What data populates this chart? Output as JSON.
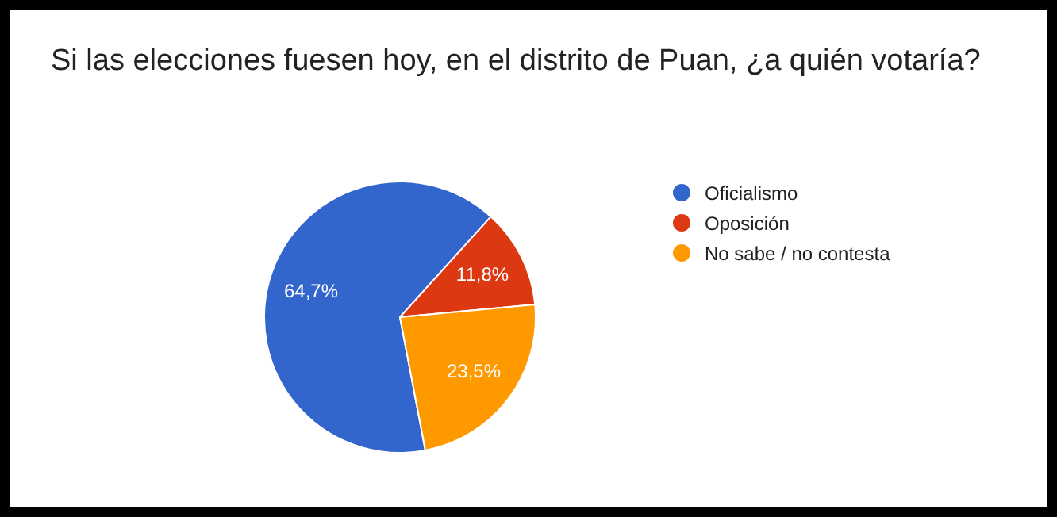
{
  "chart_data": {
    "type": "pie",
    "title": "Si las elecciones fuesen hoy, en el distrito de Puan, ¿a quién votaría?",
    "categories": [
      "Oficialismo",
      "Oposición",
      "No sabe / no contesta"
    ],
    "values": [
      64.7,
      11.8,
      23.5
    ],
    "colors": [
      "#3366cc",
      "#dc3912",
      "#ff9900"
    ],
    "value_labels": [
      "64,7%",
      "11,8%",
      "23,5%"
    ],
    "legend": "right"
  }
}
